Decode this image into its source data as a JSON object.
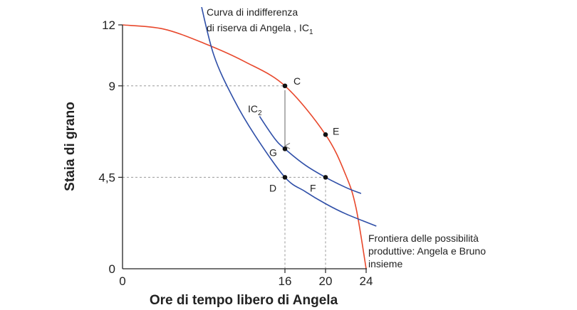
{
  "chart_data": {
    "type": "line",
    "title": "",
    "xlabel": "Ore di tempo libero di Angela",
    "ylabel": "Staia di grano",
    "xlim": [
      0,
      24
    ],
    "ylim": [
      0,
      12
    ],
    "x_ticks": [
      "0",
      "16",
      "20",
      "24"
    ],
    "y_ticks": [
      "0",
      "4,5",
      "9",
      "12"
    ],
    "grid": false,
    "series": [
      {
        "name": "Frontiera delle possibilità produttive: Angela e Bruno insieme",
        "color": "#e8482c",
        "x": [
          0,
          4,
          8,
          12,
          16,
          20,
          22,
          23,
          24
        ],
        "y": [
          12,
          11.8,
          11.1,
          10.2,
          9,
          6.6,
          4.6,
          3,
          0
        ]
      },
      {
        "name": "Curva di indifferenza di riserva di Angela , IC1",
        "color": "#2f4fa8",
        "x": [
          7.6,
          9,
          11,
          13,
          16,
          18,
          20,
          22,
          25
        ],
        "y": [
          13.3,
          10.5,
          8.3,
          6.6,
          4.5,
          3.8,
          3.2,
          2.7,
          2.1
        ]
      },
      {
        "name": "IC2",
        "color": "#2f4fa8",
        "x": [
          13.5,
          15,
          16,
          18,
          20,
          22,
          23.5
        ],
        "y": [
          7.5,
          6.4,
          5.9,
          5.1,
          4.5,
          4.0,
          3.7
        ]
      }
    ],
    "points": [
      {
        "label": "C",
        "x": 16,
        "y": 9
      },
      {
        "label": "E",
        "x": 20,
        "y": 6.6
      },
      {
        "label": "G",
        "x": 16,
        "y": 5.9
      },
      {
        "label": "D",
        "x": 16,
        "y": 4.5
      },
      {
        "label": "F",
        "x": 20,
        "y": 4.5
      }
    ],
    "annotations": {
      "ic1_line1": "Curva di indifferenza",
      "ic1_line2": "di riserva di Angela , IC",
      "ic1_sub": "1",
      "ic2_main": "IC",
      "ic2_sub": "2",
      "ppf_line1": "Frontiera delle possibilità",
      "ppf_line2": "produttive: Angela e Bruno",
      "ppf_line3": "insieme"
    }
  }
}
